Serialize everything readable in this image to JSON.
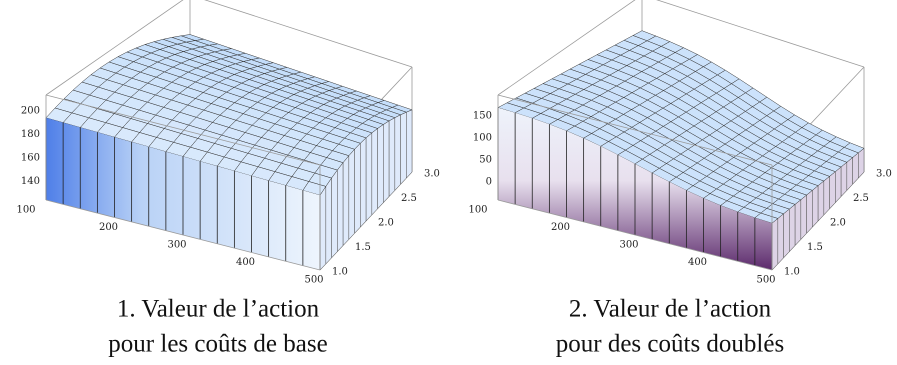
{
  "figures": [
    {
      "z_ticks": [
        "200",
        "180",
        "160",
        "140"
      ],
      "x_ticks": [
        "100",
        "200",
        "300",
        "400",
        "500"
      ],
      "y_ticks": [
        "1.0",
        "1.5",
        "2.0",
        "2.5",
        "3.0"
      ],
      "caption": [
        "1. Valeur de l’action",
        "pour les coûts de base"
      ]
    },
    {
      "z_ticks": [
        "150",
        "100",
        "50",
        "0"
      ],
      "x_ticks": [
        "100",
        "200",
        "300",
        "400",
        "500"
      ],
      "y_ticks": [
        "1.0",
        "1.5",
        "2.0",
        "2.5",
        "3.0"
      ],
      "caption": [
        "2. Valeur de l’action",
        "pour des coûts doublés"
      ]
    }
  ]
}
